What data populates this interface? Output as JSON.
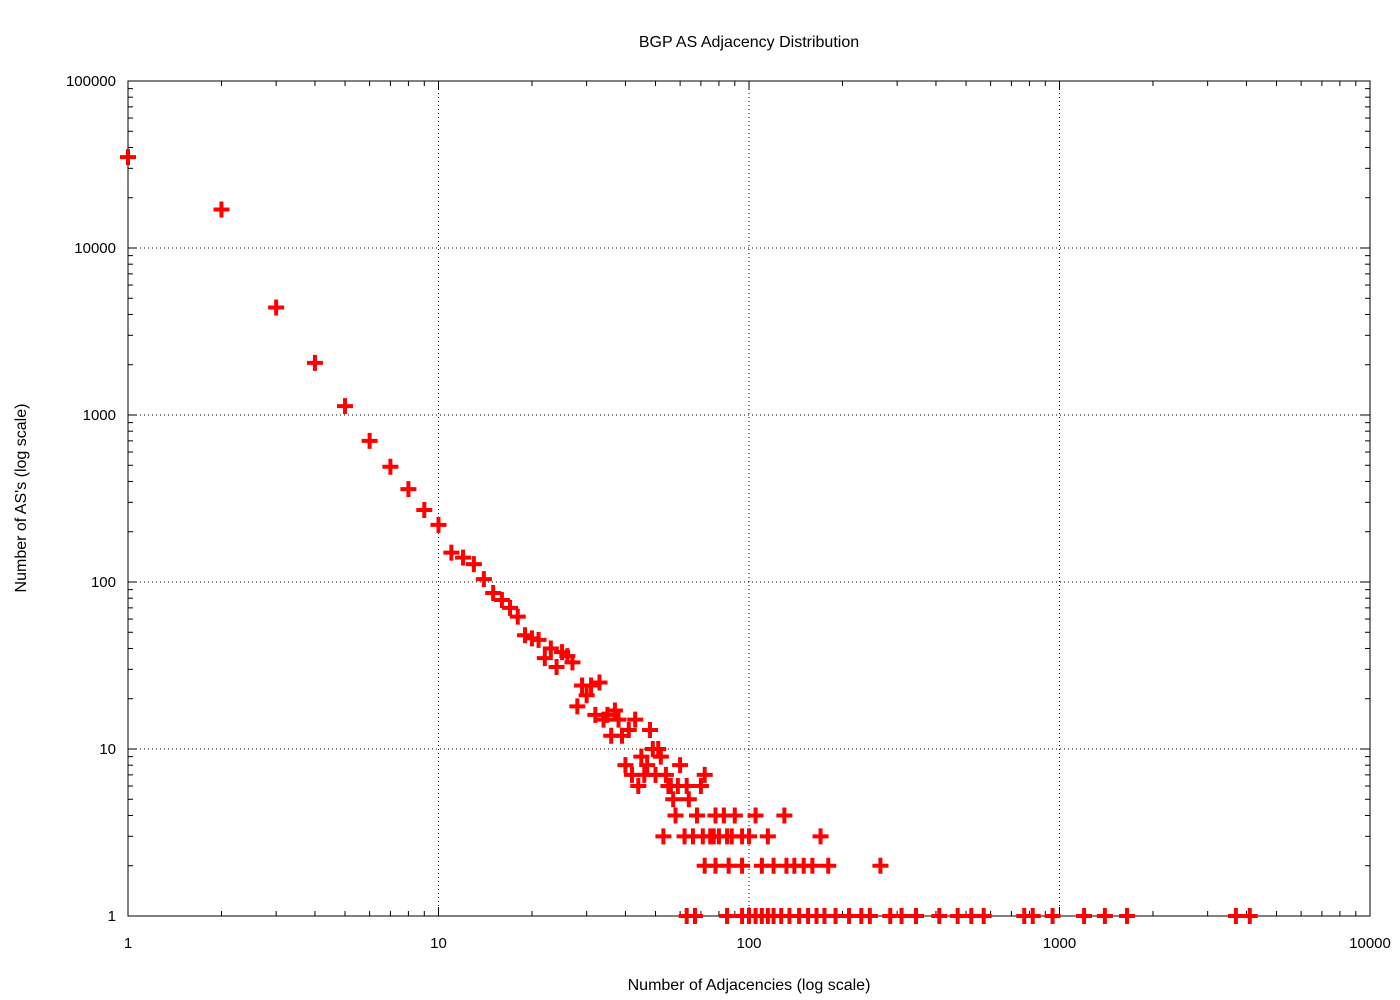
{
  "chart_data": {
    "type": "scatter",
    "title": "BGP AS Adjacency Distribution",
    "xlabel": "Number of Adjacencies (log scale)",
    "ylabel": "Number of AS's (log scale)",
    "xscale": "log",
    "yscale": "log",
    "xlim": [
      1,
      10000
    ],
    "ylim": [
      1,
      100000
    ],
    "grid": true,
    "marker": "plus",
    "color": "#ff0000",
    "x_ticks": [
      {
        "value": 1,
        "label": "1"
      },
      {
        "value": 10,
        "label": "10"
      },
      {
        "value": 100,
        "label": "100"
      },
      {
        "value": 1000,
        "label": "1000"
      },
      {
        "value": 10000,
        "label": "10000"
      }
    ],
    "y_ticks": [
      {
        "value": 1,
        "label": "1"
      },
      {
        "value": 10,
        "label": "10"
      },
      {
        "value": 100,
        "label": "100"
      },
      {
        "value": 1000,
        "label": "1000"
      },
      {
        "value": 10000,
        "label": "10000"
      },
      {
        "value": 100000,
        "label": "100000"
      }
    ],
    "points": [
      [
        1,
        35000
      ],
      [
        2,
        17000
      ],
      [
        3,
        4400
      ],
      [
        4,
        2050
      ],
      [
        5,
        1130
      ],
      [
        6,
        700
      ],
      [
        7,
        490
      ],
      [
        8,
        360
      ],
      [
        9,
        270
      ],
      [
        10,
        220
      ],
      [
        11,
        150
      ],
      [
        12,
        140
      ],
      [
        13,
        128
      ],
      [
        14,
        104
      ],
      [
        15,
        86
      ],
      [
        16,
        78
      ],
      [
        17,
        70
      ],
      [
        18,
        62
      ],
      [
        19,
        48
      ],
      [
        20,
        46
      ],
      [
        21,
        45
      ],
      [
        22,
        35
      ],
      [
        23,
        40
      ],
      [
        24,
        31
      ],
      [
        25,
        38
      ],
      [
        26,
        36
      ],
      [
        27,
        33
      ],
      [
        28,
        18
      ],
      [
        29,
        24
      ],
      [
        30,
        21
      ],
      [
        31,
        24
      ],
      [
        32,
        16
      ],
      [
        33,
        25
      ],
      [
        34,
        15
      ],
      [
        35,
        16
      ],
      [
        36,
        12
      ],
      [
        37,
        17
      ],
      [
        38,
        15
      ],
      [
        39,
        12
      ],
      [
        40,
        8
      ],
      [
        41,
        13
      ],
      [
        42,
        7
      ],
      [
        43,
        15
      ],
      [
        44,
        6
      ],
      [
        45,
        9
      ],
      [
        46,
        7
      ],
      [
        47,
        8
      ],
      [
        48,
        13
      ],
      [
        49,
        10
      ],
      [
        50,
        7
      ],
      [
        51,
        10
      ],
      [
        52,
        9
      ],
      [
        53,
        3
      ],
      [
        54,
        7
      ],
      [
        55,
        6
      ],
      [
        56,
        6
      ],
      [
        57,
        5
      ],
      [
        58,
        4
      ],
      [
        59,
        6
      ],
      [
        60,
        8
      ],
      [
        62,
        3
      ],
      [
        63,
        6
      ],
      [
        64,
        5
      ],
      [
        66,
        3
      ],
      [
        68,
        4
      ],
      [
        70,
        6
      ],
      [
        71,
        3
      ],
      [
        72,
        7
      ],
      [
        75,
        3
      ],
      [
        77,
        3
      ],
      [
        78,
        4
      ],
      [
        80,
        3
      ],
      [
        83,
        4
      ],
      [
        85,
        3
      ],
      [
        88,
        3
      ],
      [
        90,
        4
      ],
      [
        95,
        3
      ],
      [
        100,
        3
      ],
      [
        105,
        4
      ],
      [
        115,
        3
      ],
      [
        130,
        4
      ],
      [
        150,
        2
      ],
      [
        170,
        3
      ],
      [
        72,
        2
      ],
      [
        78,
        2
      ],
      [
        86,
        2
      ],
      [
        95,
        2
      ],
      [
        110,
        2
      ],
      [
        120,
        2
      ],
      [
        132,
        2
      ],
      [
        140,
        2
      ],
      [
        160,
        2
      ],
      [
        180,
        2
      ],
      [
        265,
        2
      ],
      [
        63,
        1
      ],
      [
        67,
        1
      ],
      [
        85,
        1
      ],
      [
        95,
        1
      ],
      [
        100,
        1
      ],
      [
        105,
        1
      ],
      [
        110,
        1
      ],
      [
        115,
        1
      ],
      [
        120,
        1
      ],
      [
        127,
        1
      ],
      [
        135,
        1
      ],
      [
        145,
        1
      ],
      [
        155,
        1
      ],
      [
        165,
        1
      ],
      [
        175,
        1
      ],
      [
        190,
        1
      ],
      [
        210,
        1
      ],
      [
        230,
        1
      ],
      [
        245,
        1
      ],
      [
        285,
        1
      ],
      [
        310,
        1
      ],
      [
        345,
        1
      ],
      [
        410,
        1
      ],
      [
        470,
        1
      ],
      [
        520,
        1
      ],
      [
        570,
        1
      ],
      [
        770,
        1
      ],
      [
        820,
        1
      ],
      [
        950,
        1
      ],
      [
        1200,
        1
      ],
      [
        1400,
        1
      ],
      [
        1650,
        1
      ],
      [
        3700,
        1
      ],
      [
        4100,
        1
      ]
    ]
  }
}
